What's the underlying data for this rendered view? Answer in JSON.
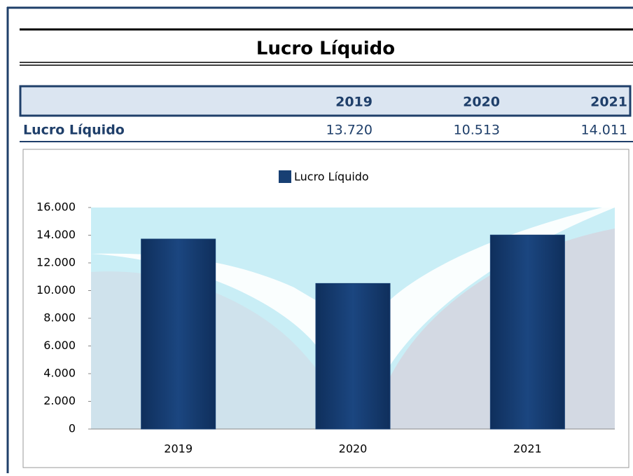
{
  "header": {
    "title": "Lucro Líquido"
  },
  "table": {
    "columns": [
      "2019",
      "2020",
      "2021"
    ],
    "rows": [
      {
        "label": "Lucro Líquido",
        "cells": [
          "13.720",
          "10.513",
          "14.011"
        ]
      }
    ]
  },
  "chart_data": {
    "type": "bar",
    "categories": [
      "2019",
      "2020",
      "2021"
    ],
    "series": [
      {
        "name": "Lucro Líquido",
        "color": "#173f73",
        "values": [
          13720,
          10513,
          14011
        ]
      }
    ],
    "ylim": [
      0,
      16000
    ],
    "yticks": [
      0,
      {
        "value": 2000,
        "label": "2.000"
      },
      {
        "value": 4000,
        "label": "4.000"
      },
      {
        "value": 6000,
        "label": "6.000"
      },
      {
        "value": 8000,
        "label": "8.000"
      },
      {
        "value": 10000,
        "label": "10.000"
      },
      {
        "value": 12000,
        "label": "12.000"
      },
      {
        "value": 14000,
        "label": "14.000"
      },
      {
        "value": 16000,
        "label": "16.000"
      }
    ],
    "legend": "top"
  }
}
